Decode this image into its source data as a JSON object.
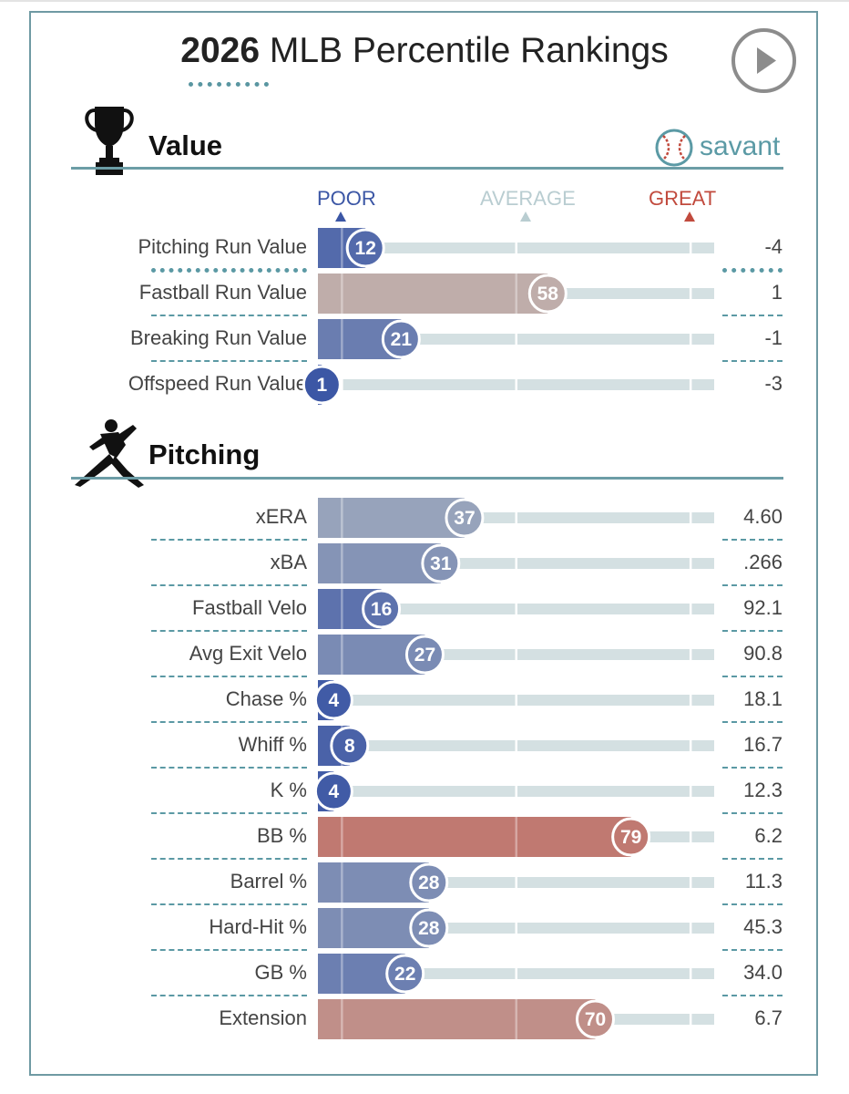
{
  "header": {
    "title_year": "2026",
    "title_rest": "MLB Percentile Rankings"
  },
  "icons": {
    "play": "play-icon",
    "trophy": "trophy-icon",
    "pitcher": "pitcher-icon",
    "baseball": "baseball-icon"
  },
  "brand": {
    "name": "savant"
  },
  "colors": {
    "poor": "#3b56a5",
    "great": "#c14a3d",
    "average": "#bfc4c4",
    "track": "#d4e0e2",
    "accent": "#5b9aa5"
  },
  "scale": {
    "poor": "POOR",
    "average": "AVERAGE",
    "great": "GREAT"
  },
  "chart_data": {
    "type": "bar",
    "title": "2026 MLB Percentile Rankings",
    "xlim": [
      0,
      100
    ],
    "sections": [
      {
        "name": "Value",
        "metrics": [
          {
            "label": "Pitching Run Value",
            "percentile": 12,
            "value": "-4"
          },
          {
            "label": "Fastball Run Value",
            "percentile": 58,
            "value": "1"
          },
          {
            "label": "Breaking Run Value",
            "percentile": 21,
            "value": "-1"
          },
          {
            "label": "Offspeed Run Value",
            "percentile": 1,
            "value": "-3"
          }
        ]
      },
      {
        "name": "Pitching",
        "metrics": [
          {
            "label": "xERA",
            "percentile": 37,
            "value": "4.60"
          },
          {
            "label": "xBA",
            "percentile": 31,
            "value": ".266"
          },
          {
            "label": "Fastball Velo",
            "percentile": 16,
            "value": "92.1"
          },
          {
            "label": "Avg Exit Velo",
            "percentile": 27,
            "value": "90.8"
          },
          {
            "label": "Chase %",
            "percentile": 4,
            "value": "18.1"
          },
          {
            "label": "Whiff %",
            "percentile": 8,
            "value": "16.7"
          },
          {
            "label": "K %",
            "percentile": 4,
            "value": "12.3"
          },
          {
            "label": "BB %",
            "percentile": 79,
            "value": "6.2"
          },
          {
            "label": "Barrel %",
            "percentile": 28,
            "value": "11.3"
          },
          {
            "label": "Hard-Hit %",
            "percentile": 28,
            "value": "45.3"
          },
          {
            "label": "GB %",
            "percentile": 22,
            "value": "34.0"
          },
          {
            "label": "Extension",
            "percentile": 70,
            "value": "6.7"
          }
        ]
      }
    ]
  }
}
